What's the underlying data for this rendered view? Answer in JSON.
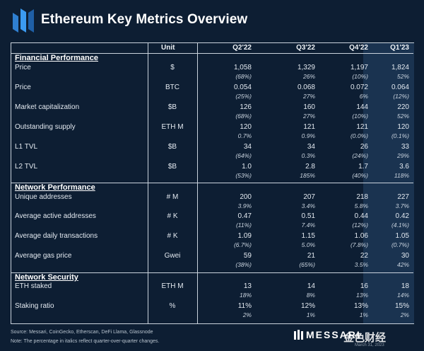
{
  "title": "Ethereum Key Metrics Overview",
  "columns": {
    "unit": "Unit",
    "q1": "Q2'22",
    "q2": "Q3'22",
    "q3": "Q4'22",
    "q4": "Q1'23"
  },
  "sections": {
    "financial": "Financial Performance",
    "network": "Network Performance",
    "security": "Network Security"
  },
  "rows": [
    {
      "label": "Price",
      "unit": "$",
      "values": [
        "1,058",
        "1,329",
        "1,197",
        "1,824"
      ],
      "changes": [
        "(68%)",
        "26%",
        "(10%)",
        "52%"
      ]
    },
    {
      "label": "Price",
      "unit": "BTC",
      "values": [
        "0.054",
        "0.068",
        "0.072",
        "0.064"
      ],
      "changes": [
        "(25%)",
        "27%",
        "6%",
        "(12%)"
      ]
    },
    {
      "label": "Market capitalization",
      "unit": "$B",
      "values": [
        "126",
        "160",
        "144",
        "220"
      ],
      "changes": [
        "(68%)",
        "27%",
        "(10%)",
        "52%"
      ]
    },
    {
      "label": "Outstanding supply",
      "unit": "ETH M",
      "values": [
        "120",
        "121",
        "121",
        "120"
      ],
      "changes": [
        "0.7%",
        "0.9%",
        "(0.0%)",
        "(0.1%)"
      ]
    },
    {
      "label": "L1 TVL",
      "unit": "$B",
      "values": [
        "34",
        "34",
        "26",
        "33"
      ],
      "changes": [
        "(64%)",
        "0.3%",
        "(24%)",
        "29%"
      ]
    },
    {
      "label": "L2 TVL",
      "unit": "$B",
      "values": [
        "1.0",
        "2.8",
        "1.7",
        "3.6"
      ],
      "changes": [
        "(53%)",
        "185%",
        "(40%)",
        "118%"
      ]
    },
    {
      "label": "Unique addresses",
      "unit": "# M",
      "values": [
        "200",
        "207",
        "218",
        "227"
      ],
      "changes": [
        "3.9%",
        "3.4%",
        "5.8%",
        "3.7%"
      ]
    },
    {
      "label": "Average active addresses",
      "unit": "# K",
      "values": [
        "0.47",
        "0.51",
        "0.44",
        "0.42"
      ],
      "changes": [
        "(11%)",
        "7.4%",
        "(12%)",
        "(4.1%)"
      ]
    },
    {
      "label": "Average daily transactions",
      "unit": "# K",
      "values": [
        "1.09",
        "1.15",
        "1.06",
        "1.05"
      ],
      "changes": [
        "(6.7%)",
        "5.0%",
        "(7.8%)",
        "(0.7%)"
      ]
    },
    {
      "label": "Average gas price",
      "unit": "Gwei",
      "values": [
        "59",
        "21",
        "22",
        "30"
      ],
      "changes": [
        "(38%)",
        "(65%)",
        "3.5%",
        "42%"
      ]
    },
    {
      "label": "ETH staked",
      "unit": "ETH M",
      "values": [
        "13",
        "14",
        "16",
        "18"
      ],
      "changes": [
        "18%",
        "8%",
        "13%",
        "14%"
      ]
    },
    {
      "label": "Staking ratio",
      "unit": "%",
      "values": [
        "11%",
        "12%",
        "13%",
        "15%"
      ],
      "changes": [
        "2%",
        "1%",
        "1%",
        "2%"
      ]
    }
  ],
  "footer": {
    "source": "Source: Messari, CoinGecko, Etherscan, DeFi Llama, Glassnode",
    "note": "Note: The percentage in italics reflect quarter-over-quarter changes.",
    "brand": "MESSARI",
    "watermark": "金色财经",
    "date": "March 31, 2023"
  },
  "colors": {
    "background": "#0d1e33",
    "q1_band": "#1a3350",
    "rule": "#c9d2dc"
  }
}
